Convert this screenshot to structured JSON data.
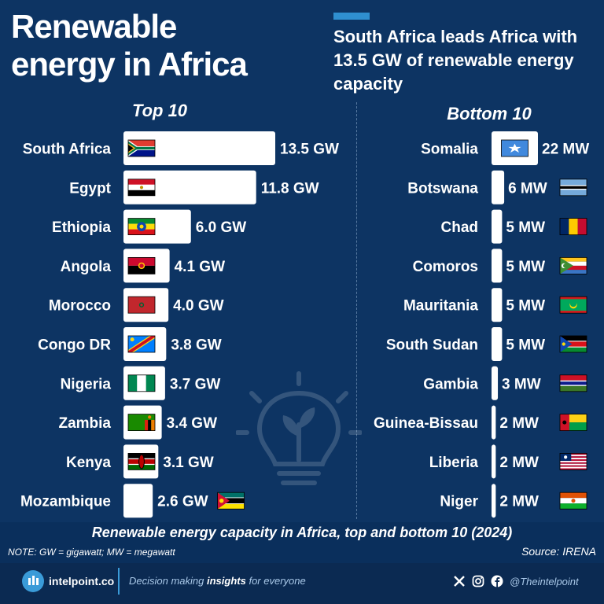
{
  "header": {
    "title_line1": "Renewable",
    "title_line2": "energy in Africa",
    "subtitle": "South Africa leads Africa with 13.5 GW of renewable energy capacity"
  },
  "colors": {
    "background": "#0d3463",
    "bar": "#ffffff",
    "accent": "#2f8fd0",
    "text": "#ffffff"
  },
  "chart_data": [
    {
      "type": "bar",
      "orientation": "horizontal",
      "title": "Top 10",
      "unit": "GW",
      "categories": [
        "South Africa",
        "Egypt",
        "Ethiopia",
        "Angola",
        "Morocco",
        "Congo DR",
        "Nigeria",
        "Zambia",
        "Kenya",
        "Mozambique"
      ],
      "values": [
        13.5,
        11.8,
        6.0,
        4.1,
        4.0,
        3.8,
        3.7,
        3.4,
        3.1,
        2.6
      ],
      "value_labels": [
        "13.5 GW",
        "11.8 GW",
        "6.0 GW",
        "4.1 GW",
        "4.0 GW",
        "3.8 GW",
        "3.7 GW",
        "3.4 GW",
        "3.1 GW",
        "2.6 GW"
      ],
      "flag_icons": [
        "flag-south-africa-icon",
        "flag-egypt-icon",
        "flag-ethiopia-icon",
        "flag-angola-icon",
        "flag-morocco-icon",
        "flag-congo-dr-icon",
        "flag-nigeria-icon",
        "flag-zambia-icon",
        "flag-kenya-icon",
        "flag-mozambique-icon"
      ]
    },
    {
      "type": "bar",
      "orientation": "horizontal",
      "title": "Bottom 10",
      "unit": "MW",
      "categories": [
        "Somalia",
        "Botswana",
        "Chad",
        "Comoros",
        "Mauritania",
        "South Sudan",
        "Gambia",
        "Guinea-Bissau",
        "Liberia",
        "Niger"
      ],
      "values": [
        22,
        6,
        5,
        5,
        5,
        5,
        3,
        2,
        2,
        2
      ],
      "value_labels": [
        "22 MW",
        "6 MW",
        "5 MW",
        "5 MW",
        "5 MW",
        "5 MW",
        "3 MW",
        "2 MW",
        "2 MW",
        "2 MW"
      ],
      "flag_icons": [
        "flag-somalia-icon",
        "flag-botswana-icon",
        "flag-chad-icon",
        "flag-comoros-icon",
        "flag-mauritania-icon",
        "flag-south-sudan-icon",
        "flag-gambia-icon",
        "flag-guinea-bissau-icon",
        "flag-liberia-icon",
        "flag-niger-icon"
      ]
    }
  ],
  "caption": "Renewable energy capacity in Africa, top and bottom 10 (2024)",
  "note": "NOTE: GW = gigawatt; MW = megawatt",
  "source": "Source: IRENA",
  "footer": {
    "brand": "intelpoint.co",
    "tagline_pre": "Decision making ",
    "tagline_bold": "insights",
    "tagline_post": " for everyone",
    "handle": "@Theintelpoint",
    "social_icons": [
      "x-icon",
      "instagram-icon",
      "facebook-icon"
    ]
  }
}
